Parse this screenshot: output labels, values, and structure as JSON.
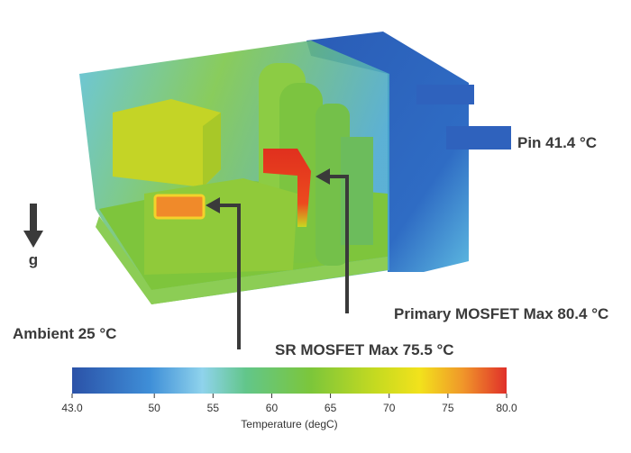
{
  "annotations": {
    "pin": "Pin 41.4 °C",
    "primary": "Primary MOSFET Max 80.4 °C",
    "sr": "SR MOSFET Max 75.5 °C",
    "ambient": "Ambient 25 °C",
    "gravity": "g"
  },
  "colorbar": {
    "label": "Temperature (degC)",
    "ticks": [
      {
        "value": 43,
        "label": "43.0"
      },
      50,
      55,
      60,
      65,
      70,
      75,
      {
        "value": 80,
        "label": "80.0"
      }
    ]
  }
}
